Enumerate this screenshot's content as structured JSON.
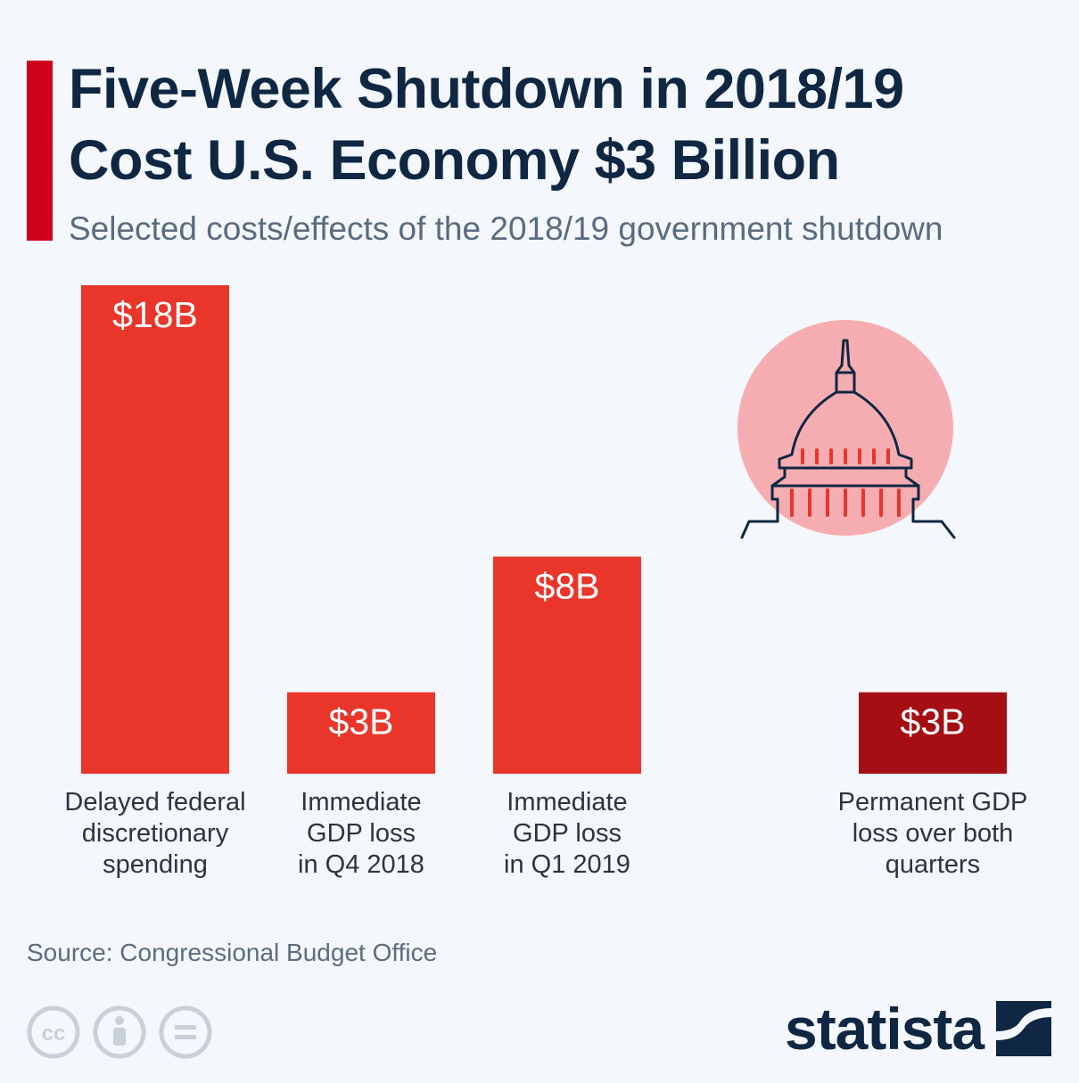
{
  "header": {
    "title_line1": "Five-Week Shutdown in 2018/19",
    "title_line2": "Cost U.S. Economy $3 Billion",
    "subtitle": "Selected costs/effects of the 2018/19 government shutdown"
  },
  "chart_data": {
    "type": "bar",
    "title": "Five-Week Shutdown in 2018/19 Cost U.S. Economy $3 Billion",
    "subtitle": "Selected costs/effects of the 2018/19 government shutdown",
    "xlabel": "",
    "ylabel": "",
    "unit": "billion US$",
    "categories": [
      [
        "Delayed federal",
        "discretionary",
        "spending"
      ],
      [
        "Immediate",
        "GDP loss",
        "in Q4 2018"
      ],
      [
        "Immediate",
        "GDP loss",
        "in Q1 2019"
      ],
      [
        "Permanent GDP",
        "loss over both",
        "quarters"
      ]
    ],
    "values": [
      18,
      3,
      8,
      3
    ],
    "value_labels": [
      "$18B",
      "$3B",
      "$8B",
      "$3B"
    ],
    "bar_colors": [
      "#e9352a",
      "#e9352a",
      "#e9352a",
      "#a50f14"
    ],
    "ylim": [
      0,
      18
    ],
    "grid": false,
    "legend": "none"
  },
  "footer": {
    "source": "Source: Congressional Budget Office",
    "logo_text": "statista",
    "license_icons": [
      "creative-commons-icon",
      "attribution-icon",
      "no-derivatives-icon"
    ]
  },
  "colors": {
    "accent": "#d0021b",
    "title": "#0f2743",
    "subtitle": "#5a6b80",
    "bar": "#e9352a",
    "bar_highlight": "#a50f14",
    "illustration_circle": "#f6adb1",
    "background": "#f4f7fb"
  }
}
